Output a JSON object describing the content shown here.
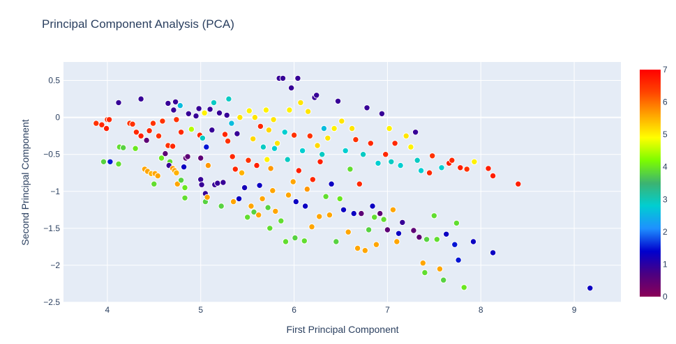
{
  "chart_data": {
    "type": "scatter",
    "title": "Principal Component Analysis (PCA)",
    "xlabel": "First Principal Component",
    "ylabel": "Second Principal Component",
    "xlim": [
      3.53,
      9.5
    ],
    "ylim": [
      -2.5,
      0.75
    ],
    "xticks": [
      4,
      5,
      6,
      7,
      8,
      9
    ],
    "yticks": [
      0.5,
      0,
      -0.5,
      -1,
      -1.5,
      -2,
      -2.5
    ],
    "grid": true,
    "colorbar": {
      "min": 0,
      "max": 7,
      "ticks": [
        0,
        1,
        2,
        3,
        4,
        5,
        6,
        7
      ],
      "colorscale": [
        "#8b0057",
        "#4b0082",
        "#0000cd",
        "#1e90ff",
        "#00ced1",
        "#3cb371",
        "#7cfc00",
        "#ffff00",
        "#ffa500",
        "#ff4500",
        "#ff0000"
      ]
    },
    "colors": {
      "plot_bg": "#e5ecf6",
      "grid": "#ffffff",
      "text": "#2a3f5f",
      "marker_edge": "#ffffff"
    },
    "points": [
      [
        3.88,
        -0.08,
        6.5
      ],
      [
        3.94,
        -0.1,
        6.6
      ],
      [
        3.99,
        -0.15,
        6.7
      ],
      [
        4.0,
        -0.03,
        6.5
      ],
      [
        4.02,
        -0.03,
        6.6
      ],
      [
        3.96,
        -0.6,
        3.8
      ],
      [
        4.03,
        -0.6,
        1.5
      ],
      [
        4.12,
        -0.63,
        3.9
      ],
      [
        4.13,
        -0.4,
        3.9
      ],
      [
        4.17,
        -0.41,
        3.8
      ],
      [
        4.12,
        0.2,
        0.9
      ],
      [
        4.24,
        -0.08,
        6.5
      ],
      [
        4.27,
        -0.09,
        6.5
      ],
      [
        4.31,
        -0.2,
        6.6
      ],
      [
        4.3,
        -0.42,
        4.0
      ],
      [
        4.36,
        0.25,
        0.9
      ],
      [
        4.36,
        -0.25,
        6.7
      ],
      [
        4.42,
        -0.31,
        0.5
      ],
      [
        4.45,
        -0.18,
        6.6
      ],
      [
        4.49,
        -0.08,
        6.5
      ],
      [
        4.55,
        -0.25,
        6.5
      ],
      [
        4.59,
        -0.05,
        6.5
      ],
      [
        4.4,
        -0.7,
        5.6
      ],
      [
        4.43,
        -0.73,
        5.6
      ],
      [
        4.47,
        -0.76,
        5.5
      ],
      [
        4.51,
        -0.76,
        5.6
      ],
      [
        4.54,
        -0.79,
        5.6
      ],
      [
        4.5,
        -0.9,
        3.9
      ],
      [
        4.58,
        -0.55,
        4.0
      ],
      [
        4.62,
        -0.49,
        0.5
      ],
      [
        4.65,
        -0.38,
        6.5
      ],
      [
        4.67,
        -0.6,
        3.9
      ],
      [
        4.66,
        -0.65,
        0.9
      ],
      [
        4.7,
        -0.69,
        5.7
      ],
      [
        4.72,
        -0.72,
        5.6
      ],
      [
        4.74,
        -0.75,
        5.5
      ],
      [
        4.7,
        -0.39,
        6.6
      ],
      [
        4.65,
        0.19,
        0.9
      ],
      [
        4.71,
        0.1,
        0.9
      ],
      [
        4.73,
        0.21,
        0.9
      ],
      [
        4.78,
        0.16,
        2.6
      ],
      [
        4.79,
        -0.2,
        6.6
      ],
      [
        4.74,
        -0.03,
        6.5
      ],
      [
        4.75,
        -0.9,
        5.6
      ],
      [
        4.79,
        -0.85,
        3.8
      ],
      [
        4.82,
        -0.67,
        1.3
      ],
      [
        4.83,
        -0.95,
        4.0
      ],
      [
        4.83,
        -1.09,
        3.9
      ],
      [
        4.84,
        -0.55,
        0.5
      ],
      [
        4.86,
        -0.53,
        0.5
      ],
      [
        4.87,
        0.05,
        0.9
      ],
      [
        4.9,
        -0.16,
        4.5
      ],
      [
        4.95,
        0.02,
        0.9
      ],
      [
        4.98,
        0.12,
        0.9
      ],
      [
        4.99,
        -0.24,
        6.6
      ],
      [
        5.0,
        -0.55,
        0.5
      ],
      [
        5.02,
        -0.28,
        2.9
      ],
      [
        5.04,
        0.06,
        5.0
      ],
      [
        5.06,
        -0.4,
        1.5
      ],
      [
        5.0,
        -0.84,
        0.9
      ],
      [
        5.01,
        -0.91,
        0.9
      ],
      [
        5.05,
        -1.03,
        0.9
      ],
      [
        5.05,
        -1.14,
        3.8
      ],
      [
        5.07,
        -1.08,
        5.6
      ],
      [
        5.08,
        -0.65,
        5.7
      ],
      [
        5.1,
        0.11,
        0.9
      ],
      [
        5.12,
        -0.17,
        0.9
      ],
      [
        5.14,
        0.2,
        2.9
      ],
      [
        5.15,
        -0.91,
        0.9
      ],
      [
        5.18,
        -0.89,
        0.9
      ],
      [
        5.2,
        0.06,
        0.9
      ],
      [
        5.22,
        -1.2,
        3.8
      ],
      [
        5.24,
        -0.88,
        0.9
      ],
      [
        5.26,
        -0.23,
        6.6
      ],
      [
        5.28,
        0.03,
        0.9
      ],
      [
        5.29,
        -0.32,
        6.5
      ],
      [
        5.3,
        0.25,
        2.9
      ],
      [
        5.33,
        -0.08,
        2.6
      ],
      [
        5.34,
        -0.53,
        6.6
      ],
      [
        5.35,
        -1.14,
        5.6
      ],
      [
        5.37,
        -0.7,
        6.6
      ],
      [
        5.39,
        -0.22,
        0.9
      ],
      [
        5.41,
        -1.1,
        1.3
      ],
      [
        5.42,
        0.0,
        5.1
      ],
      [
        5.44,
        -0.75,
        5.5
      ],
      [
        5.47,
        -0.95,
        1.2
      ],
      [
        5.5,
        -1.35,
        3.9
      ],
      [
        5.51,
        -0.58,
        6.5
      ],
      [
        5.52,
        0.09,
        5.0
      ],
      [
        5.54,
        -1.2,
        5.6
      ],
      [
        5.56,
        -0.29,
        5.2
      ],
      [
        5.57,
        -1.28,
        3.8
      ],
      [
        5.58,
        0.0,
        5.1
      ],
      [
        5.6,
        -0.65,
        6.7
      ],
      [
        5.62,
        -1.32,
        5.6
      ],
      [
        5.63,
        -0.92,
        1.3
      ],
      [
        5.64,
        -0.12,
        6.6
      ],
      [
        5.66,
        -1.1,
        5.6
      ],
      [
        5.67,
        -0.4,
        2.9
      ],
      [
        5.7,
        0.1,
        5.0
      ],
      [
        5.71,
        -0.57,
        5.0
      ],
      [
        5.72,
        -1.22,
        3.8
      ],
      [
        5.73,
        -0.17,
        5.2
      ],
      [
        5.74,
        -1.5,
        3.9
      ],
      [
        5.75,
        -0.69,
        5.7
      ],
      [
        5.77,
        -0.99,
        5.6
      ],
      [
        5.78,
        -0.03,
        5.1
      ],
      [
        5.79,
        -0.42,
        2.8
      ],
      [
        5.8,
        -1.27,
        5.6
      ],
      [
        5.82,
        -0.35,
        5.1
      ],
      [
        5.84,
        0.53,
        0.9
      ],
      [
        5.86,
        -1.4,
        3.9
      ],
      [
        5.88,
        0.53,
        0.9
      ],
      [
        5.9,
        -0.2,
        2.8
      ],
      [
        5.91,
        -1.68,
        3.9
      ],
      [
        5.93,
        -0.57,
        2.9
      ],
      [
        5.94,
        -1.05,
        5.6
      ],
      [
        5.95,
        0.1,
        5.0
      ],
      [
        5.97,
        0.4,
        0.9
      ],
      [
        5.99,
        -0.87,
        5.6
      ],
      [
        6.0,
        -0.24,
        6.5
      ],
      [
        6.01,
        -1.63,
        3.8
      ],
      [
        6.02,
        -1.14,
        1.3
      ],
      [
        6.04,
        0.53,
        0.9
      ],
      [
        6.05,
        -0.72,
        6.7
      ],
      [
        6.07,
        0.2,
        5.1
      ],
      [
        6.09,
        -0.45,
        2.8
      ],
      [
        6.11,
        -1.67,
        3.9
      ],
      [
        6.12,
        -1.2,
        1.3
      ],
      [
        6.14,
        -0.97,
        5.7
      ],
      [
        6.15,
        0.08,
        5.1
      ],
      [
        6.17,
        -0.25,
        6.5
      ],
      [
        6.19,
        -1.48,
        5.6
      ],
      [
        6.2,
        -0.84,
        6.6
      ],
      [
        6.22,
        0.27,
        0.9
      ],
      [
        6.24,
        0.3,
        0.9
      ],
      [
        6.25,
        -0.38,
        5.2
      ],
      [
        6.27,
        -1.34,
        5.6
      ],
      [
        6.28,
        -0.6,
        6.7
      ],
      [
        6.3,
        -0.5,
        2.9
      ],
      [
        6.32,
        -0.15,
        2.6
      ],
      [
        6.34,
        -1.07,
        3.9
      ],
      [
        6.36,
        -0.28,
        5.1
      ],
      [
        6.38,
        -1.32,
        5.6
      ],
      [
        6.4,
        -0.9,
        1.3
      ],
      [
        6.43,
        -0.15,
        5.0
      ],
      [
        6.45,
        -1.68,
        3.8
      ],
      [
        6.47,
        0.22,
        0.9
      ],
      [
        6.49,
        -1.1,
        4.0
      ],
      [
        6.51,
        -0.05,
        5.1
      ],
      [
        6.53,
        -1.25,
        1.3
      ],
      [
        6.55,
        -0.45,
        2.8
      ],
      [
        6.58,
        -1.55,
        5.6
      ],
      [
        6.6,
        -0.7,
        3.9
      ],
      [
        6.62,
        -0.15,
        5.1
      ],
      [
        6.64,
        -1.3,
        1.3
      ],
      [
        6.66,
        -0.3,
        6.5
      ],
      [
        6.68,
        -1.77,
        5.6
      ],
      [
        6.7,
        -0.9,
        6.6
      ],
      [
        6.72,
        -1.3,
        0.5
      ],
      [
        6.74,
        -0.5,
        2.9
      ],
      [
        6.76,
        -1.8,
        5.6
      ],
      [
        6.78,
        0.13,
        0.9
      ],
      [
        6.8,
        -1.52,
        3.8
      ],
      [
        6.82,
        -0.35,
        6.6
      ],
      [
        6.84,
        -1.2,
        1.3
      ],
      [
        6.86,
        -1.35,
        3.9
      ],
      [
        6.88,
        -1.72,
        5.6
      ],
      [
        6.9,
        -0.62,
        2.8
      ],
      [
        6.92,
        -1.3,
        0.5
      ],
      [
        6.94,
        0.05,
        0.9
      ],
      [
        6.96,
        -1.38,
        3.9
      ],
      [
        6.98,
        -0.5,
        6.6
      ],
      [
        7.0,
        -1.52,
        0.5
      ],
      [
        7.02,
        -0.15,
        5.0
      ],
      [
        7.04,
        -0.6,
        2.9
      ],
      [
        7.06,
        -1.25,
        5.6
      ],
      [
        7.08,
        -0.35,
        6.6
      ],
      [
        7.1,
        -1.68,
        5.6
      ],
      [
        7.12,
        -1.57,
        1.3
      ],
      [
        7.14,
        -0.65,
        2.8
      ],
      [
        7.16,
        -1.42,
        0.9
      ],
      [
        7.2,
        -0.25,
        5.1
      ],
      [
        7.25,
        -0.4,
        5.0
      ],
      [
        7.28,
        -1.53,
        0.5
      ],
      [
        7.3,
        -0.2,
        0.9
      ],
      [
        7.32,
        -0.58,
        2.9
      ],
      [
        7.34,
        -1.62,
        0.5
      ],
      [
        7.36,
        -0.72,
        2.8
      ],
      [
        7.38,
        -1.97,
        5.6
      ],
      [
        7.4,
        -2.1,
        3.9
      ],
      [
        7.42,
        -1.65,
        3.8
      ],
      [
        7.45,
        -0.75,
        6.6
      ],
      [
        7.48,
        -0.52,
        6.5
      ],
      [
        7.5,
        -1.33,
        3.9
      ],
      [
        7.53,
        -1.65,
        3.9
      ],
      [
        7.56,
        -2.05,
        5.6
      ],
      [
        7.58,
        -0.68,
        2.8
      ],
      [
        7.6,
        -2.2,
        3.8
      ],
      [
        7.63,
        -1.58,
        1.3
      ],
      [
        7.66,
        -0.62,
        6.7
      ],
      [
        7.69,
        -0.58,
        6.6
      ],
      [
        7.72,
        -1.72,
        1.5
      ],
      [
        7.74,
        -1.43,
        3.9
      ],
      [
        7.76,
        -1.93,
        1.5
      ],
      [
        7.78,
        -0.68,
        6.7
      ],
      [
        7.82,
        -2.3,
        4.0
      ],
      [
        7.85,
        -0.7,
        6.5
      ],
      [
        7.92,
        -1.68,
        1.3
      ],
      [
        7.93,
        -0.6,
        5.0
      ],
      [
        8.08,
        -0.69,
        6.7
      ],
      [
        8.13,
        -0.79,
        6.7
      ],
      [
        8.13,
        -1.83,
        1.3
      ],
      [
        8.4,
        -0.9,
        6.7
      ],
      [
        9.17,
        -2.31,
        1.3
      ]
    ]
  }
}
